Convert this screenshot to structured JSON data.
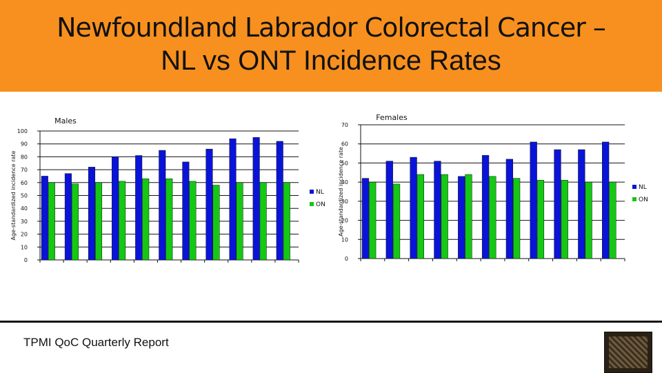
{
  "title": {
    "line1": "Newfoundland Labrador Colorectal Cancer –",
    "line2": "NL vs ONT Incidence Rates"
  },
  "footer": {
    "text": "TPMI QoC Quarterly Report"
  },
  "colors": {
    "header": "#f7901e",
    "nl": "#0a14d8",
    "on": "#14c814"
  },
  "chart_data": [
    {
      "type": "bar",
      "title": "Males",
      "xlabel": "",
      "ylabel": "Age-standardized incidence rate",
      "ylim": [
        0,
        100
      ],
      "yticks": [
        0,
        10,
        20,
        30,
        40,
        50,
        60,
        70,
        80,
        90,
        100
      ],
      "categories": [
        "",
        "",
        "",
        "",
        "",
        "",
        "",
        "",
        "",
        "",
        ""
      ],
      "series": [
        {
          "name": "NL",
          "values": [
            65,
            67,
            72,
            80,
            81,
            85,
            76,
            86,
            94,
            95,
            92
          ]
        },
        {
          "name": "ON",
          "values": [
            60,
            59,
            60,
            61,
            63,
            63,
            61,
            58,
            60,
            60,
            60
          ]
        }
      ]
    },
    {
      "type": "bar",
      "title": "Females",
      "xlabel": "",
      "ylabel": "Age-standardized incidence rate",
      "ylim": [
        0,
        70
      ],
      "yticks": [
        0,
        10,
        20,
        30,
        40,
        50,
        60,
        70
      ],
      "categories": [
        "",
        "",
        "",
        "",
        "",
        "",
        "",
        "",
        "",
        "",
        ""
      ],
      "series": [
        {
          "name": "NL",
          "values": [
            42,
            51,
            53,
            51,
            43,
            54,
            52,
            61,
            57,
            57,
            61
          ]
        },
        {
          "name": "ON",
          "values": [
            40,
            39,
            44,
            44,
            44,
            43,
            42,
            41,
            41,
            40,
            40
          ]
        }
      ]
    }
  ]
}
